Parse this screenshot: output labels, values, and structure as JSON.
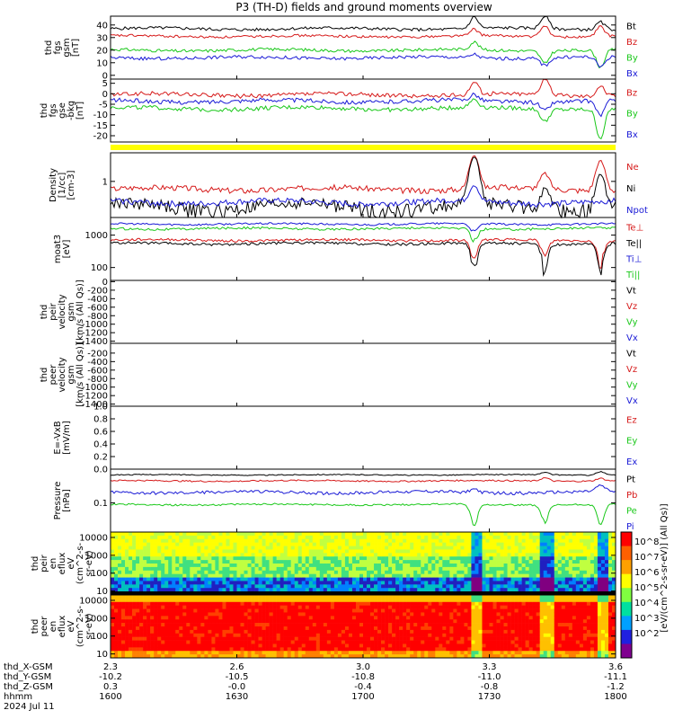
{
  "title": "P3 (TH-D) fields and ground moments overview",
  "colors": {
    "black": "#000000",
    "red": "#d61a1a",
    "green": "#1ac81a",
    "blue": "#1a1ad6",
    "yellow": "#ffff00"
  },
  "chart_data": [
    {
      "type": "line",
      "ylabel": [
        "thd",
        "fgs",
        "gsm",
        "[nT]"
      ],
      "yticks": [
        "40",
        "30",
        "20",
        "10",
        "0"
      ],
      "yrange": [
        -3,
        47
      ],
      "series": [
        {
          "name": "Bt",
          "color": "black",
          "level": 37,
          "noise": 1.2,
          "events": [
            [
              0.72,
              9
            ],
            [
              0.86,
              10
            ],
            [
              0.97,
              6
            ]
          ]
        },
        {
          "name": "Bz",
          "color": "red",
          "level": 31,
          "noise": 1.0,
          "events": [
            [
              0.72,
              5
            ],
            [
              0.86,
              9
            ],
            [
              0.97,
              8
            ]
          ]
        },
        {
          "name": "By",
          "color": "green",
          "level": 20,
          "noise": 1.2,
          "events": [
            [
              0.72,
              6
            ],
            [
              0.86,
              -10
            ],
            [
              0.97,
              -14
            ]
          ]
        },
        {
          "name": "Bx",
          "color": "blue",
          "level": 14,
          "noise": 1.3,
          "events": [
            [
              0.72,
              3
            ],
            [
              0.86,
              -6
            ],
            [
              0.97,
              -8
            ]
          ]
        }
      ]
    },
    {
      "type": "line",
      "ylabel": [
        "thd",
        "fgs",
        "gse",
        "-bkg",
        "[nT]"
      ],
      "yticks": [
        "5",
        "0",
        "-5",
        "-10",
        "-15",
        "-20"
      ],
      "yrange": [
        -23,
        7
      ],
      "series": [
        {
          "name": "Bz",
          "color": "red",
          "level": -0.5,
          "noise": 1.0,
          "events": [
            [
              0.72,
              6
            ],
            [
              0.86,
              8
            ],
            [
              0.97,
              5
            ]
          ]
        },
        {
          "name": "By",
          "color": "green",
          "level": -7,
          "noise": 1.0,
          "events": [
            [
              0.72,
              4
            ],
            [
              0.86,
              -6
            ],
            [
              0.97,
              -14
            ]
          ]
        },
        {
          "name": "Bx",
          "color": "blue",
          "level": -3.5,
          "noise": 1.0,
          "events": [
            [
              0.72,
              3
            ],
            [
              0.86,
              -4
            ],
            [
              0.97,
              -7
            ]
          ]
        }
      ]
    },
    {
      "type": "line",
      "log": true,
      "ylabel": [
        "Density",
        "[1/cc]",
        "[cm-3]"
      ],
      "yticks": [
        "1"
      ],
      "yrange": [
        0.25,
        3.0
      ],
      "series": [
        {
          "name": "Ne",
          "color": "red",
          "level": 0.75,
          "noise": 0.08,
          "events": [
            [
              0.72,
              2.0
            ],
            [
              0.86,
              0.6
            ],
            [
              0.97,
              1.5
            ]
          ]
        },
        {
          "name": "Ni",
          "color": "black",
          "level": 0.38,
          "noise": 0.1,
          "events": [
            [
              0.72,
              2.2
            ],
            [
              0.86,
              0.4
            ],
            [
              0.97,
              0.9
            ]
          ]
        },
        {
          "name": "Npot",
          "color": "blue",
          "level": 0.45,
          "noise": 0.05,
          "events": [
            [
              0.72,
              0.4
            ]
          ]
        }
      ]
    },
    {
      "type": "line",
      "log": true,
      "ylabel": [
        "moat3",
        "[eV]"
      ],
      "yticks": [
        "1000",
        "100"
      ],
      "yrange": [
        40,
        3500
      ],
      "series": [
        {
          "name": "Te⊥",
          "color": "red",
          "level": 700,
          "noise": 60,
          "events": [
            [
              0.72,
              -550
            ],
            [
              0.86,
              -500
            ],
            [
              0.97,
              -550
            ]
          ]
        },
        {
          "name": "Te||",
          "color": "black",
          "level": 550,
          "noise": 50,
          "events": [
            [
              0.72,
              -500
            ],
            [
              0.86,
              -450
            ],
            [
              0.97,
              -450
            ]
          ]
        },
        {
          "name": "Ti⊥",
          "color": "blue",
          "level": 2200,
          "noise": 150,
          "events": [
            [
              0.72,
              -1000
            ]
          ]
        },
        {
          "name": "Ti||",
          "color": "green",
          "level": 1600,
          "noise": 130,
          "events": [
            [
              0.72,
              -900
            ]
          ]
        }
      ]
    },
    {
      "type": "line",
      "ylabel": [
        "thd",
        "peir",
        "velocity",
        "gsm",
        "[km/s (All Qs)]"
      ],
      "yticks": [
        "0",
        "-200",
        "-400",
        "-600",
        "-800",
        "-1000",
        "-1200",
        "-1400"
      ],
      "yrange": [
        -1450,
        30
      ],
      "series": [
        {
          "name": "Vt",
          "color": "black"
        },
        {
          "name": "Vz",
          "color": "red"
        },
        {
          "name": "Vy",
          "color": "green"
        },
        {
          "name": "Vx",
          "color": "blue"
        }
      ]
    },
    {
      "type": "line",
      "ylabel": [
        "thd",
        "peer",
        "velocity",
        "gsm",
        "[km/s (All Qs)]"
      ],
      "yticks": [
        "-200",
        "-400",
        "-600",
        "-800",
        "-1000",
        "-1200",
        "-1400"
      ],
      "yrange": [
        -1450,
        30
      ],
      "series": [
        {
          "name": "Vt",
          "color": "black"
        },
        {
          "name": "Vz",
          "color": "red"
        },
        {
          "name": "Vy",
          "color": "green"
        },
        {
          "name": "Vx",
          "color": "blue"
        }
      ]
    },
    {
      "type": "line",
      "ylabel": [
        "E=-VxB",
        "[mV/m]"
      ],
      "yticks": [
        "1.0",
        "0.8",
        "0.6",
        "0.4",
        "0.2",
        "0.0"
      ],
      "yrange": [
        0,
        1.0
      ],
      "series": [
        {
          "name": "Ez",
          "color": "red"
        },
        {
          "name": "Ey",
          "color": "green"
        },
        {
          "name": "Ex",
          "color": "blue"
        }
      ]
    },
    {
      "type": "line",
      "log": true,
      "ylabel": [
        "Pressure",
        "[nPa]"
      ],
      "yticks": [
        "0.1"
      ],
      "yrange": [
        0.015,
        0.9
      ],
      "series": [
        {
          "name": "Pt",
          "color": "black",
          "level": 0.62,
          "noise": 0.02,
          "events": [
            [
              0.86,
              0.1
            ],
            [
              0.97,
              0.15
            ]
          ]
        },
        {
          "name": "Pb",
          "color": "red",
          "level": 0.42,
          "noise": 0.02,
          "events": [
            [
              0.86,
              0.1
            ],
            [
              0.97,
              0.08
            ]
          ]
        },
        {
          "name": "Pe",
          "color": "green",
          "level": 0.09,
          "noise": 0.005,
          "events": [
            [
              0.72,
              -0.07
            ],
            [
              0.86,
              -0.06
            ],
            [
              0.97,
              -0.07
            ]
          ]
        },
        {
          "name": "Pi",
          "color": "blue",
          "level": 0.2,
          "noise": 0.02,
          "events": [
            [
              0.72,
              0.05
            ],
            [
              0.97,
              0.1
            ]
          ]
        }
      ]
    },
    {
      "type": "heatmap",
      "log": true,
      "ylabel": [
        "thd",
        "peir",
        "en",
        "eflux",
        "eV",
        "(cm^2-s-",
        "sr-eV)"
      ],
      "yticks": [
        "10000",
        "1000",
        "100",
        "10"
      ],
      "yrange": [
        6,
        20000
      ]
    },
    {
      "type": "heatmap",
      "log": true,
      "ylabel": [
        "thd",
        "peer",
        "en",
        "eflux",
        "eV",
        "(cm^2-s-",
        "sr-eV)"
      ],
      "yticks": [
        "10000",
        "1000",
        "100",
        "10"
      ],
      "yrange": [
        6,
        20000
      ]
    }
  ],
  "colorbar": {
    "label": "[eV/(cm^2-s-sr-eV)] (All Qs)]",
    "ticks": [
      "10^8",
      "10^7",
      "10^6",
      "10^5",
      "10^4",
      "10^3",
      "10^2"
    ]
  },
  "xaxis": {
    "rows": [
      {
        "label": "thd_X-GSM",
        "values": [
          "2.3",
          "2.6",
          "3.0",
          "3.3",
          "3.6"
        ]
      },
      {
        "label": "thd_Y-GSM",
        "values": [
          "-10.2",
          "-10.5",
          "-10.8",
          "-11.0",
          "-11.1"
        ]
      },
      {
        "label": "thd_Z-GSM",
        "values": [
          "0.3",
          "-0.0",
          "-0.4",
          "-0.8",
          "-1.2"
        ]
      },
      {
        "label": "hhmm",
        "values": [
          "1600",
          "1630",
          "1700",
          "1730",
          "1800"
        ]
      }
    ],
    "date": "2024 Jul 11"
  }
}
